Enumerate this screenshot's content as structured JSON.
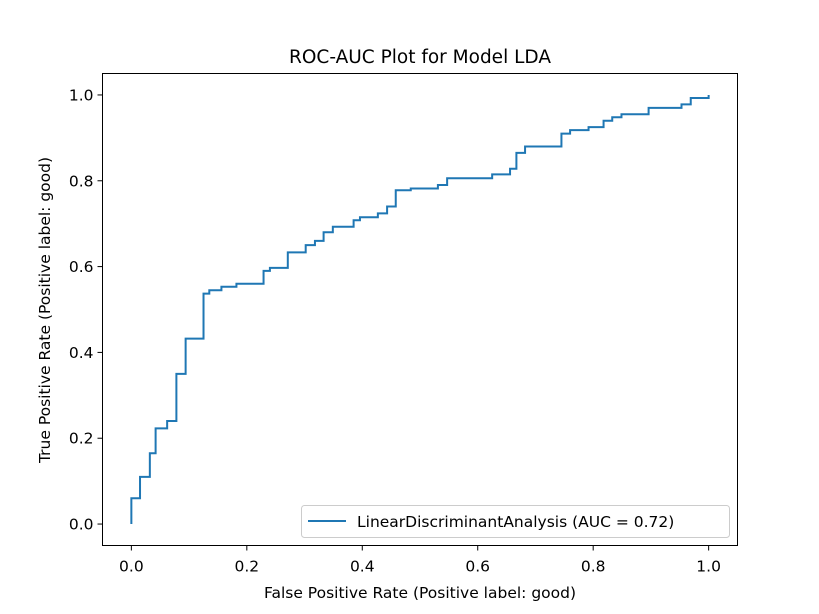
{
  "chart_data": {
    "type": "line",
    "title": "ROC-AUC Plot for Model LDA",
    "xlabel": "False Positive Rate (Positive label: good)",
    "ylabel": "True Positive Rate (Positive label: good)",
    "xlim": [
      -0.05,
      1.05
    ],
    "ylim": [
      -0.05,
      1.05
    ],
    "xticks": [
      0.0,
      0.2,
      0.4,
      0.6,
      0.8,
      1.0
    ],
    "xtick_labels": [
      "0.0",
      "0.2",
      "0.4",
      "0.6",
      "0.8",
      "1.0"
    ],
    "yticks": [
      0.0,
      0.2,
      0.4,
      0.6,
      0.8,
      1.0
    ],
    "ytick_labels": [
      "0.0",
      "0.2",
      "0.4",
      "0.6",
      "0.8",
      "1.0"
    ],
    "grid": false,
    "legend_position": "lower-right",
    "series": [
      {
        "name": "LinearDiscriminantAnalysis (AUC = 0.72)",
        "color": "#1f77b4",
        "x": [
          0.0,
          0.0,
          0.015,
          0.015,
          0.032,
          0.032,
          0.042,
          0.042,
          0.062,
          0.062,
          0.078,
          0.078,
          0.094,
          0.094,
          0.125,
          0.125,
          0.135,
          0.135,
          0.156,
          0.156,
          0.182,
          0.182,
          0.229,
          0.229,
          0.24,
          0.24,
          0.271,
          0.271,
          0.302,
          0.302,
          0.318,
          0.318,
          0.333,
          0.333,
          0.349,
          0.349,
          0.385,
          0.385,
          0.396,
          0.396,
          0.427,
          0.427,
          0.443,
          0.443,
          0.458,
          0.458,
          0.484,
          0.484,
          0.531,
          0.531,
          0.547,
          0.547,
          0.625,
          0.625,
          0.656,
          0.656,
          0.667,
          0.667,
          0.682,
          0.682,
          0.745,
          0.745,
          0.76,
          0.76,
          0.792,
          0.792,
          0.818,
          0.818,
          0.833,
          0.833,
          0.849,
          0.849,
          0.896,
          0.896,
          0.953,
          0.953,
          0.969,
          0.969,
          1.0,
          1.0
        ],
        "y": [
          0.0,
          0.06,
          0.06,
          0.11,
          0.11,
          0.165,
          0.165,
          0.223,
          0.223,
          0.24,
          0.24,
          0.35,
          0.35,
          0.432,
          0.432,
          0.537,
          0.537,
          0.545,
          0.545,
          0.553,
          0.553,
          0.56,
          0.56,
          0.59,
          0.59,
          0.597,
          0.597,
          0.633,
          0.633,
          0.65,
          0.65,
          0.66,
          0.66,
          0.68,
          0.68,
          0.693,
          0.693,
          0.708,
          0.708,
          0.715,
          0.715,
          0.724,
          0.724,
          0.74,
          0.74,
          0.778,
          0.778,
          0.782,
          0.782,
          0.79,
          0.79,
          0.806,
          0.806,
          0.815,
          0.815,
          0.828,
          0.828,
          0.865,
          0.865,
          0.88,
          0.88,
          0.91,
          0.91,
          0.918,
          0.918,
          0.925,
          0.925,
          0.94,
          0.94,
          0.948,
          0.948,
          0.955,
          0.955,
          0.97,
          0.97,
          0.978,
          0.978,
          0.993,
          0.993,
          1.0
        ]
      }
    ]
  }
}
